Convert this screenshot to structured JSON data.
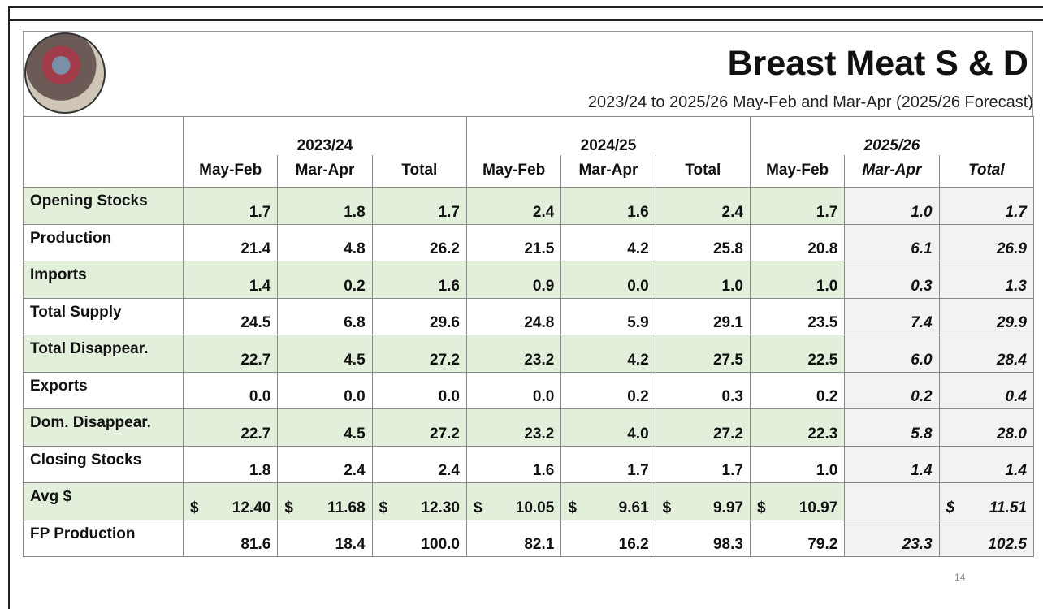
{
  "header": {
    "title": "Breast Meat S & D",
    "subtitle": "2023/24 to 2025/26 May-Feb and Mar-Apr (2025/26 Forecast)"
  },
  "table": {
    "groups": [
      "2023/24",
      "2024/25",
      "2025/26"
    ],
    "subheaders": [
      "May-Feb",
      "Mar-Apr",
      "Total",
      "May-Feb",
      "Mar-Apr",
      "Total",
      "May-Feb",
      "Mar-Apr",
      "Total"
    ],
    "rows": [
      {
        "label": "Opening Stocks",
        "cells": [
          "1.7",
          "1.8",
          "1.7",
          "2.4",
          "1.6",
          "2.4",
          "1.7",
          "1.0",
          "1.7"
        ]
      },
      {
        "label": "Production",
        "cells": [
          "21.4",
          "4.8",
          "26.2",
          "21.5",
          "4.2",
          "25.8",
          "20.8",
          "6.1",
          "26.9"
        ]
      },
      {
        "label": "Imports",
        "cells": [
          "1.4",
          "0.2",
          "1.6",
          "0.9",
          "0.0",
          "1.0",
          "1.0",
          "0.3",
          "1.3"
        ]
      },
      {
        "label": "Total Supply",
        "cells": [
          "24.5",
          "6.8",
          "29.6",
          "24.8",
          "5.9",
          "29.1",
          "23.5",
          "7.4",
          "29.9"
        ]
      },
      {
        "label": "Total Disappear.",
        "cells": [
          "22.7",
          "4.5",
          "27.2",
          "23.2",
          "4.2",
          "27.5",
          "22.5",
          "6.0",
          "28.4"
        ]
      },
      {
        "label": "Exports",
        "cells": [
          "0.0",
          "0.0",
          "0.0",
          "0.0",
          "0.2",
          "0.3",
          "0.2",
          "0.2",
          "0.4"
        ]
      },
      {
        "label": "Dom. Disappear.",
        "cells": [
          "22.7",
          "4.5",
          "27.2",
          "23.2",
          "4.0",
          "27.2",
          "22.3",
          "5.8",
          "28.0"
        ]
      },
      {
        "label": "Closing Stocks",
        "cells": [
          "1.8",
          "2.4",
          "2.4",
          "1.6",
          "1.7",
          "1.7",
          "1.0",
          "1.4",
          "1.4"
        ]
      },
      {
        "label": "Avg $",
        "cells": [
          {
            "currency": "$",
            "amount": "12.40"
          },
          {
            "currency": "$",
            "amount": "11.68"
          },
          {
            "currency": "$",
            "amount": "12.30"
          },
          {
            "currency": "$",
            "amount": "10.05"
          },
          {
            "currency": "$",
            "amount": "9.61"
          },
          {
            "currency": "$",
            "amount": "9.97"
          },
          {
            "currency": "$",
            "amount": "10.97"
          },
          null,
          {
            "currency": "$",
            "amount": "11.51"
          }
        ]
      },
      {
        "label": "FP Production",
        "cells": [
          "81.6",
          "18.4",
          "100.0",
          "82.1",
          "16.2",
          "98.3",
          "79.2",
          "23.3",
          "102.5"
        ]
      }
    ]
  },
  "footer": {
    "page_number": "14"
  }
}
